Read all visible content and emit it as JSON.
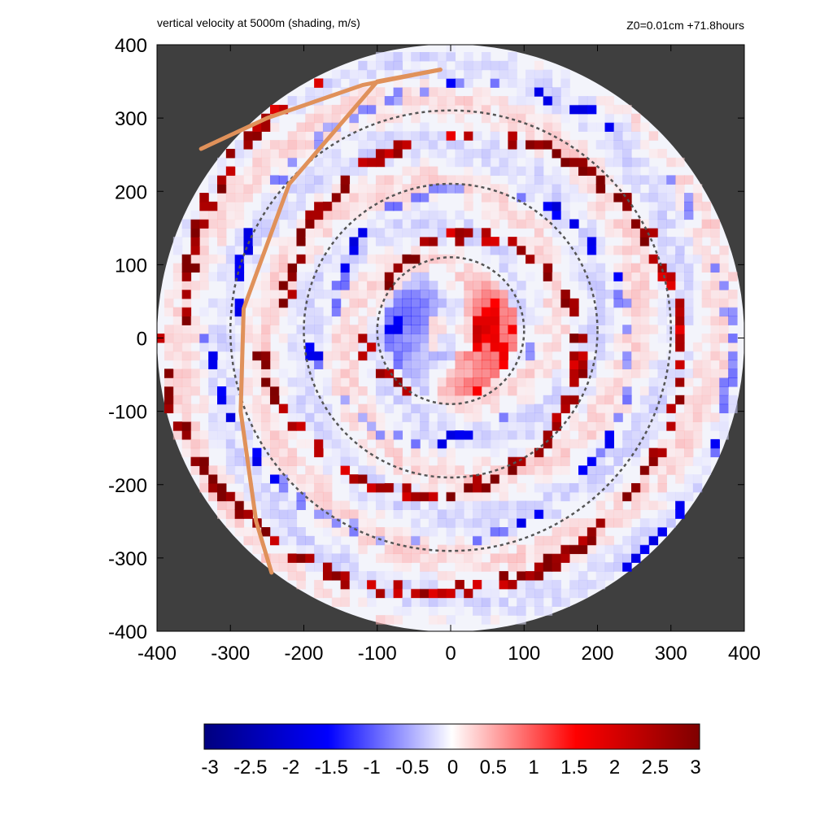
{
  "chart_data": {
    "type": "heatmap",
    "title": "vertical velocity at 5000m (shading, m/s)",
    "subtitle": "Z0=0.01cm  +71.8hours",
    "xlim": [
      -400,
      400
    ],
    "ylim": [
      -400,
      400
    ],
    "x_ticks": [
      "-400",
      "-300",
      "-200",
      "-100",
      "0",
      "100",
      "200",
      "300",
      "400"
    ],
    "y_ticks": [
      "400",
      "300",
      "200",
      "100",
      "0",
      "-100",
      "-200",
      "-300",
      "-400"
    ],
    "x_tick_values": [
      -400,
      -300,
      -200,
      -100,
      0,
      100,
      200,
      300,
      400
    ],
    "y_tick_values": [
      400,
      300,
      200,
      100,
      0,
      -100,
      -200,
      -300,
      -400
    ],
    "domain_radius": 400,
    "domain_center": [
      0,
      0
    ],
    "range_circles": [
      {
        "center": [
          0,
          10
        ],
        "radius": 100
      },
      {
        "center": [
          0,
          10
        ],
        "radius": 200
      },
      {
        "center": [
          0,
          10
        ],
        "radius": 300
      }
    ],
    "track_curve": [
      [
        -14,
        366
      ],
      [
        -100,
        350
      ],
      [
        -220,
        210
      ],
      [
        -282,
        40
      ],
      [
        -286,
        -100
      ],
      [
        -265,
        -250
      ],
      [
        -244,
        -320
      ]
    ],
    "track_arc": [
      [
        -14,
        366
      ],
      [
        -120,
        345
      ],
      [
        -250,
        300
      ],
      [
        -340,
        258
      ]
    ],
    "colorbar": {
      "min": -3,
      "max": 3,
      "labels": [
        "-3",
        "-2.5",
        "-2",
        "-1.5",
        "-1",
        "-0.5",
        "0",
        "0.5",
        "1",
        "1.5",
        "2",
        "2.5",
        "3"
      ],
      "values": [
        -3,
        -2.5,
        -2,
        -1.5,
        -1,
        -0.5,
        0,
        0.5,
        1,
        1.5,
        2,
        2.5,
        3
      ],
      "colors": [
        "#00007f",
        "#0000ff",
        "#ffffff",
        "#ff0000",
        "#7f0000"
      ]
    },
    "colors": {
      "outside_domain": "#3f3f3f",
      "range_circle": "#555555",
      "track": "#e0915a"
    }
  }
}
